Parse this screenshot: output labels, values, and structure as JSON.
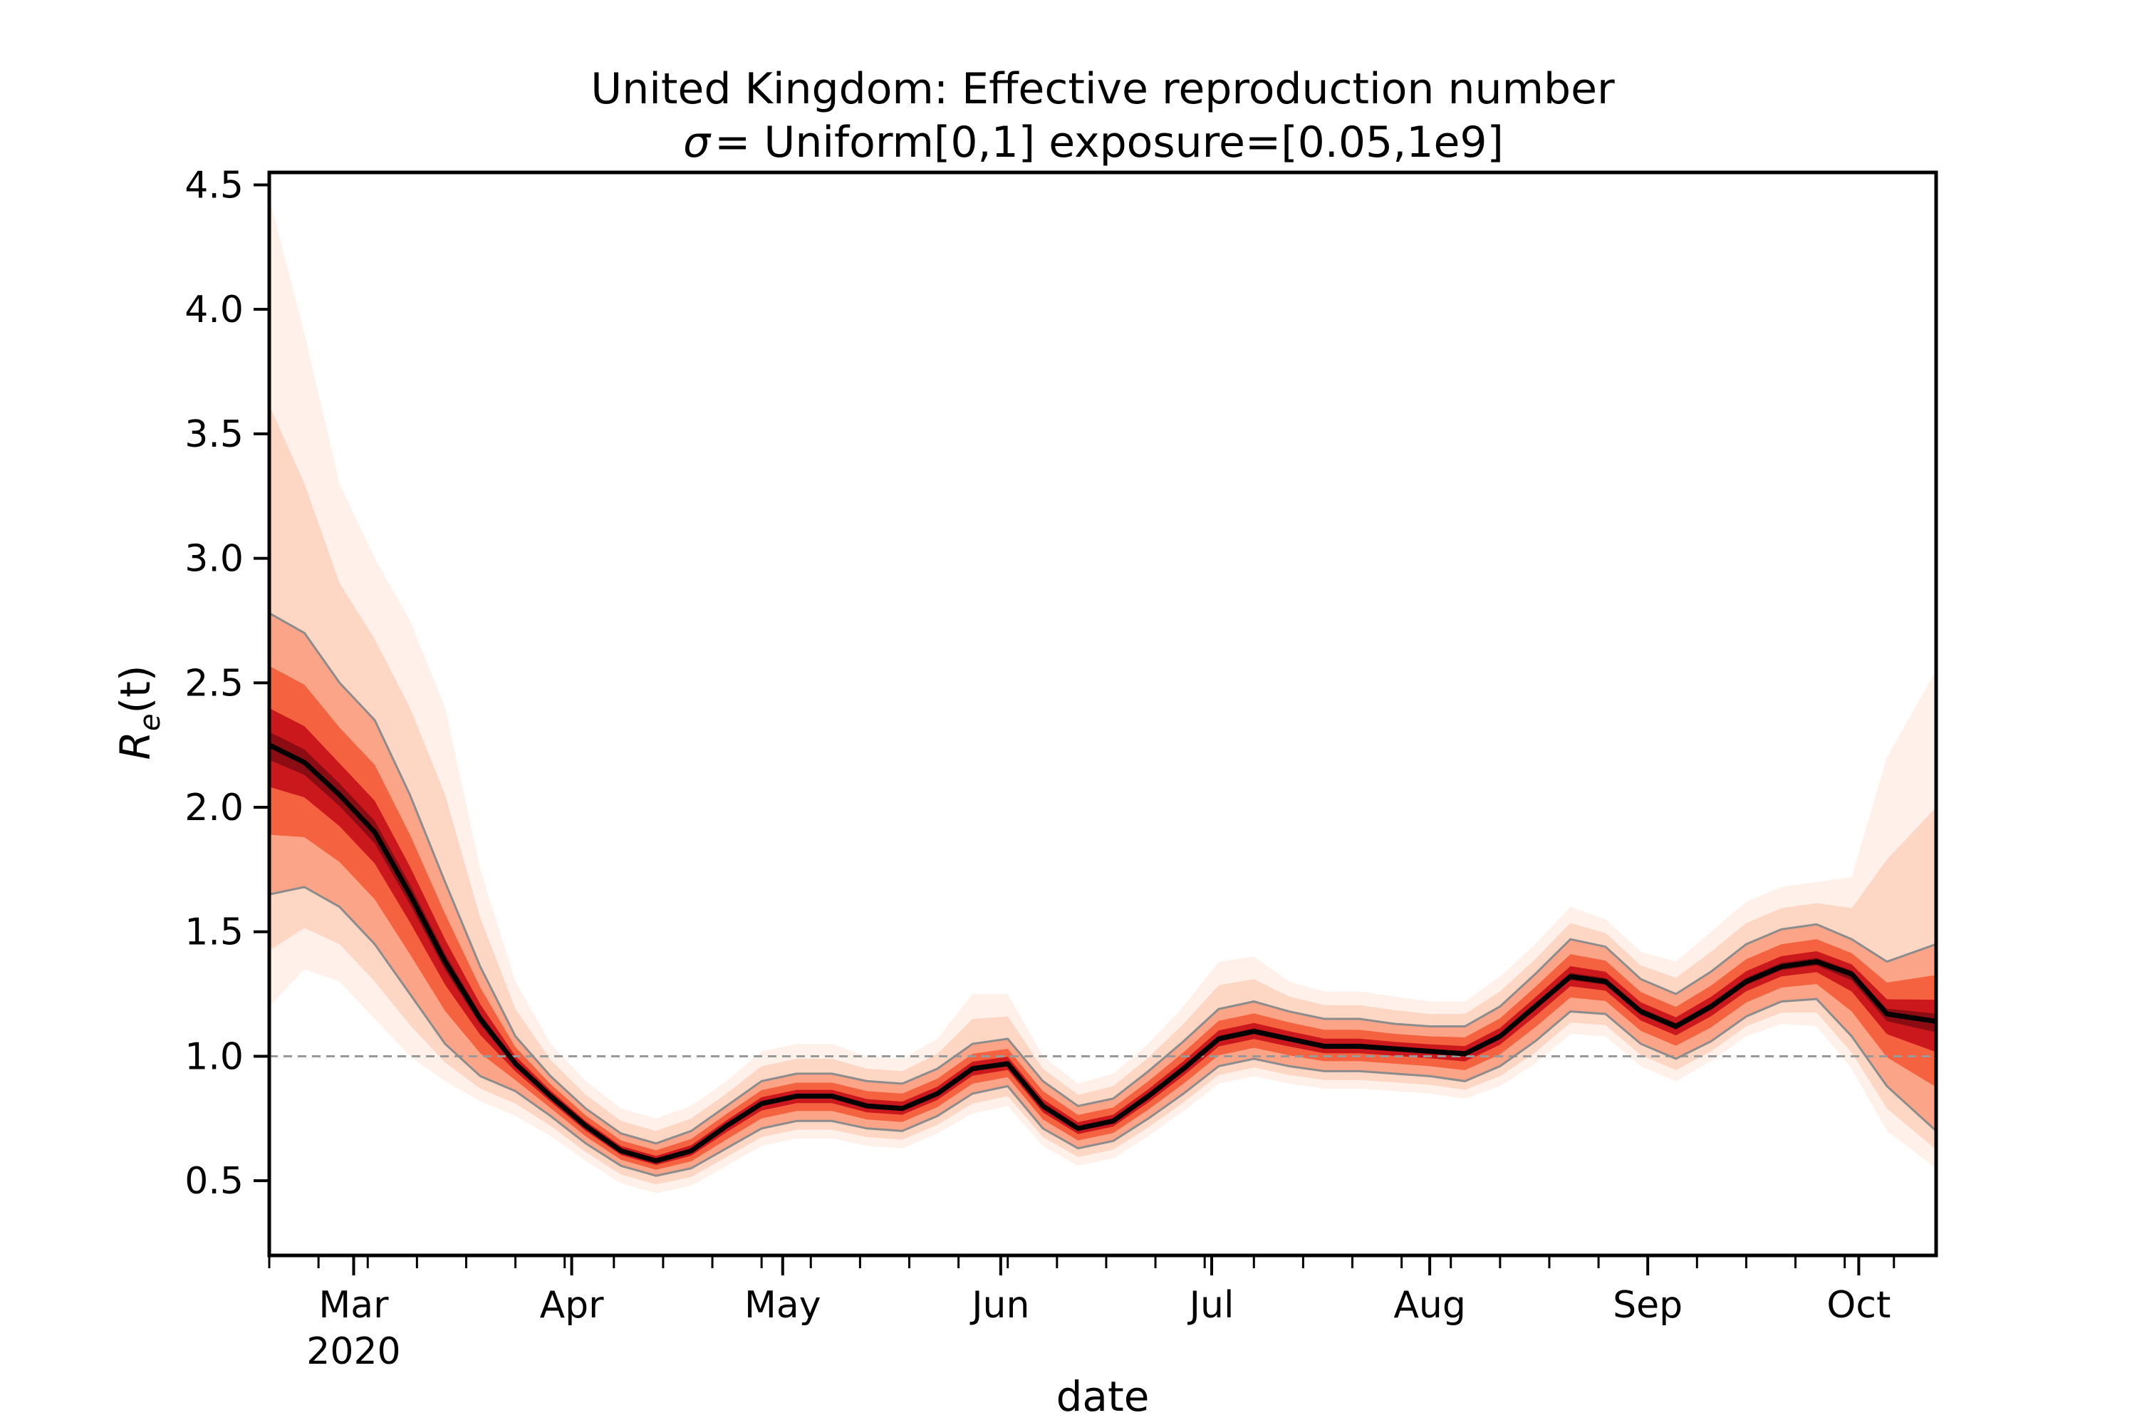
{
  "chart_data": {
    "type": "line",
    "title": "United Kingdom: Effective reproduction number",
    "subtitle_symbol": "σ",
    "subtitle": "= Uniform[0,1] exposure=[0.05,1e9]",
    "xlabel": "date",
    "ylabel": "R",
    "ylabel_sub": "e",
    "ylabel_arg": "(t)",
    "ylim": [
      0.2,
      4.55
    ],
    "xlim": [
      "2020-02-18",
      "2020-10-12"
    ],
    "y_ticks": [
      "0.5",
      "1.0",
      "1.5",
      "2.0",
      "2.5",
      "3.0",
      "3.5",
      "4.0",
      "4.5"
    ],
    "x_ticks": [
      {
        "date": "2020-03-01",
        "label": "Mar"
      },
      {
        "date": "2020-04-01",
        "label": "Apr"
      },
      {
        "date": "2020-05-01",
        "label": "May"
      },
      {
        "date": "2020-06-01",
        "label": "Jun"
      },
      {
        "date": "2020-07-01",
        "label": "Jul"
      },
      {
        "date": "2020-08-01",
        "label": "Aug"
      },
      {
        "date": "2020-09-01",
        "label": "Sep"
      },
      {
        "date": "2020-10-01",
        "label": "Oct"
      }
    ],
    "year_label": "2020",
    "reference_line": 1.0,
    "grid": false,
    "colors": {
      "median": "#000000",
      "band": "#cb181d",
      "quantile_line": "#8c8c8c",
      "reference": "#999999"
    },
    "series": [
      {
        "x": [
          "2020-02-18",
          "2020-02-23",
          "2020-02-28",
          "2020-03-04",
          "2020-03-09",
          "2020-03-14",
          "2020-03-19",
          "2020-03-24",
          "2020-03-29",
          "2020-04-03",
          "2020-04-08",
          "2020-04-13",
          "2020-04-18",
          "2020-04-23",
          "2020-04-28",
          "2020-05-03",
          "2020-05-08",
          "2020-05-13",
          "2020-05-18",
          "2020-05-23",
          "2020-05-28",
          "2020-06-02",
          "2020-06-07",
          "2020-06-12",
          "2020-06-17",
          "2020-06-22",
          "2020-06-27",
          "2020-07-02",
          "2020-07-07",
          "2020-07-12",
          "2020-07-17",
          "2020-07-22",
          "2020-07-27",
          "2020-08-01",
          "2020-08-06",
          "2020-08-11",
          "2020-08-16",
          "2020-08-21",
          "2020-08-26",
          "2020-08-31",
          "2020-09-05",
          "2020-09-10",
          "2020-09-15",
          "2020-09-20",
          "2020-09-25",
          "2020-09-30",
          "2020-10-05",
          "2020-10-12"
        ],
        "median": [
          2.25,
          2.18,
          2.05,
          1.9,
          1.65,
          1.38,
          1.15,
          0.97,
          0.84,
          0.72,
          0.62,
          0.58,
          0.62,
          0.72,
          0.81,
          0.84,
          0.84,
          0.8,
          0.79,
          0.85,
          0.95,
          0.97,
          0.8,
          0.71,
          0.74,
          0.84,
          0.95,
          1.07,
          1.1,
          1.07,
          1.04,
          1.04,
          1.03,
          1.02,
          1.01,
          1.08,
          1.2,
          1.32,
          1.3,
          1.18,
          1.12,
          1.2,
          1.3,
          1.36,
          1.38,
          1.33,
          1.17,
          1.14
        ],
        "lower": [
          1.65,
          1.68,
          1.6,
          1.45,
          1.25,
          1.05,
          0.92,
          0.86,
          0.76,
          0.65,
          0.56,
          0.52,
          0.55,
          0.63,
          0.71,
          0.74,
          0.74,
          0.71,
          0.7,
          0.76,
          0.85,
          0.88,
          0.71,
          0.63,
          0.66,
          0.75,
          0.85,
          0.96,
          0.99,
          0.96,
          0.94,
          0.94,
          0.93,
          0.92,
          0.9,
          0.96,
          1.06,
          1.18,
          1.17,
          1.05,
          0.99,
          1.06,
          1.16,
          1.22,
          1.23,
          1.08,
          0.88,
          0.7
        ],
        "upper": [
          2.78,
          2.7,
          2.5,
          2.35,
          2.05,
          1.7,
          1.36,
          1.08,
          0.92,
          0.79,
          0.69,
          0.65,
          0.7,
          0.8,
          0.9,
          0.93,
          0.93,
          0.9,
          0.89,
          0.95,
          1.05,
          1.07,
          0.9,
          0.8,
          0.83,
          0.94,
          1.06,
          1.19,
          1.22,
          1.18,
          1.15,
          1.15,
          1.13,
          1.12,
          1.12,
          1.2,
          1.33,
          1.47,
          1.44,
          1.31,
          1.25,
          1.34,
          1.45,
          1.51,
          1.53,
          1.47,
          1.38,
          1.45
        ],
        "outer_lower": [
          1.2,
          1.35,
          1.3,
          1.15,
          1.0,
          0.9,
          0.82,
          0.76,
          0.68,
          0.58,
          0.49,
          0.45,
          0.48,
          0.56,
          0.64,
          0.67,
          0.67,
          0.64,
          0.63,
          0.69,
          0.77,
          0.8,
          0.64,
          0.56,
          0.59,
          0.68,
          0.78,
          0.89,
          0.92,
          0.89,
          0.87,
          0.87,
          0.86,
          0.85,
          0.83,
          0.88,
          0.97,
          1.09,
          1.08,
          0.96,
          0.9,
          0.98,
          1.08,
          1.13,
          1.12,
          0.95,
          0.7,
          0.55
        ],
        "outer_upper": [
          4.45,
          3.9,
          3.3,
          3.0,
          2.75,
          2.4,
          1.75,
          1.3,
          1.05,
          0.9,
          0.79,
          0.75,
          0.8,
          0.9,
          1.02,
          1.05,
          1.05,
          1.0,
          0.99,
          1.07,
          1.25,
          1.25,
          1.0,
          0.89,
          0.93,
          1.05,
          1.2,
          1.38,
          1.4,
          1.3,
          1.26,
          1.26,
          1.24,
          1.22,
          1.22,
          1.32,
          1.45,
          1.6,
          1.55,
          1.42,
          1.38,
          1.5,
          1.62,
          1.68,
          1.7,
          1.72,
          2.2,
          2.55
        ]
      }
    ]
  }
}
